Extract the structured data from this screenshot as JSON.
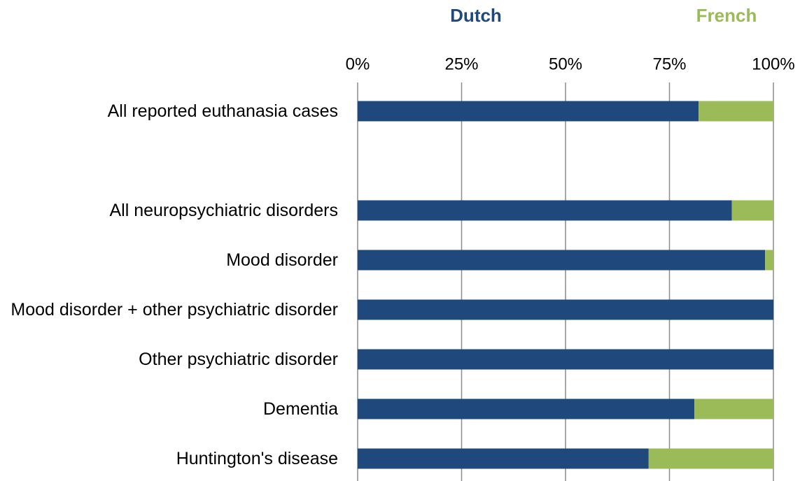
{
  "chart_data": {
    "type": "bar",
    "orientation": "horizontal",
    "stacked": true,
    "categories": [
      "All reported euthanasia cases",
      null,
      "All neuropsychiatric disorders",
      "Mood disorder",
      "Mood disorder + other psychiatric disorder",
      "Other psychiatric disorder",
      "Dementia",
      "Huntington's disease"
    ],
    "series": [
      {
        "name": "Dutch",
        "color": "#1f497d",
        "values": [
          82,
          null,
          90,
          98,
          100,
          100,
          81,
          70
        ]
      },
      {
        "name": "French",
        "color": "#9bbb59",
        "values": [
          18,
          null,
          10,
          2,
          0,
          0,
          19,
          30
        ]
      }
    ],
    "xlim": [
      0,
      100
    ],
    "xticks": [
      {
        "value": 0,
        "label": "0%"
      },
      {
        "value": 25,
        "label": "25%"
      },
      {
        "value": 50,
        "label": "50%"
      },
      {
        "value": 75,
        "label": "75%"
      },
      {
        "value": 100,
        "label": "100%"
      }
    ],
    "grid": true,
    "legend": "top"
  }
}
